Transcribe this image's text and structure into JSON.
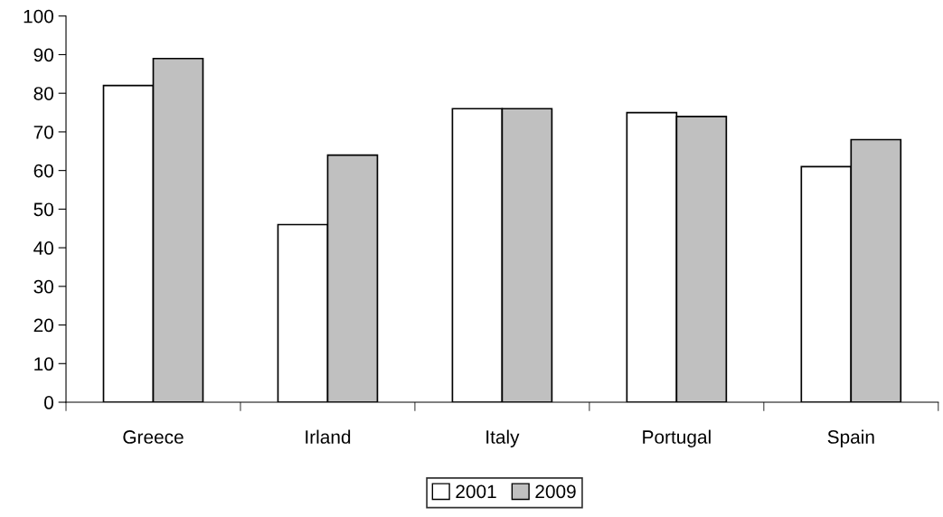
{
  "chart_data": {
    "type": "bar",
    "categories": [
      "Greece",
      "Irland",
      "Italy",
      "Portugal",
      "Spain"
    ],
    "series": [
      {
        "name": "2001",
        "color": "#ffffff",
        "values": [
          82,
          46,
          76,
          75,
          61
        ]
      },
      {
        "name": "2009",
        "color": "#c0c0c0",
        "values": [
          89,
          64,
          76,
          74,
          68
        ]
      }
    ],
    "ylim": [
      0,
      100
    ],
    "yticks": [
      0,
      10,
      20,
      30,
      40,
      50,
      60,
      70,
      80,
      90,
      100
    ],
    "grid": false,
    "legend": "bottom"
  }
}
